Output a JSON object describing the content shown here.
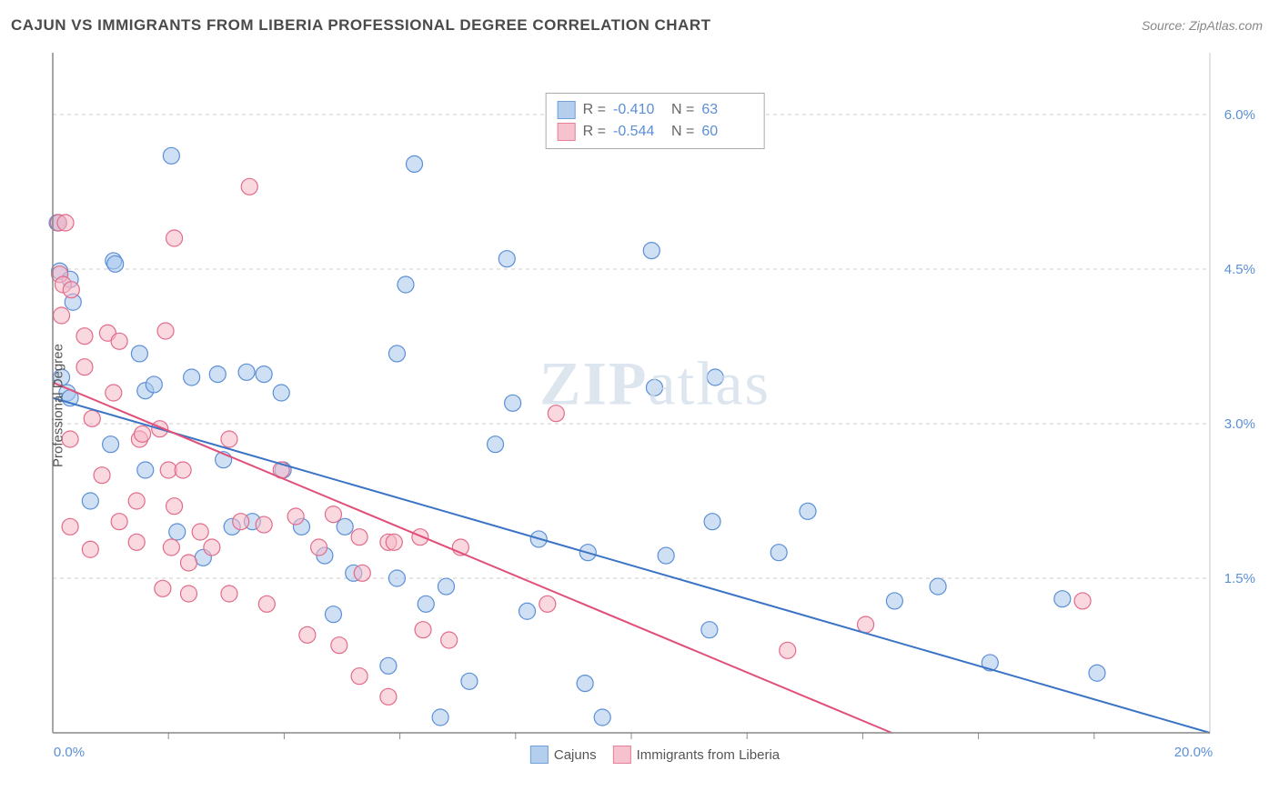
{
  "title": "CAJUN VS IMMIGRANTS FROM LIBERIA PROFESSIONAL DEGREE CORRELATION CHART",
  "source": "Source: ZipAtlas.com",
  "y_axis_label": "Professional Degree",
  "watermark_bold": "ZIP",
  "watermark_rest": "atlas",
  "chart": {
    "type": "scatter",
    "xlim": [
      0,
      20
    ],
    "ylim": [
      0,
      6.6
    ],
    "x_ticks_minor": [
      2,
      4,
      6,
      8,
      10,
      12,
      14,
      16,
      18
    ],
    "x_ticks_labeled": [
      0,
      20
    ],
    "x_tick_labels": [
      "0.0%",
      "20.0%"
    ],
    "y_ticks": [
      1.5,
      3.0,
      4.5,
      6.0
    ],
    "y_tick_labels": [
      "1.5%",
      "3.0%",
      "4.5%",
      "6.0%"
    ],
    "background_color": "#ffffff",
    "grid_color": "#cccccc",
    "axis_color": "#888888",
    "series": [
      {
        "name": "Cajuns",
        "fill": "#a8c6ec",
        "stroke": "#5b8fd6",
        "fill_opacity": 0.55,
        "marker_radius": 9,
        "r_value": "-0.410",
        "n_value": "63",
        "trend": {
          "x1": 0,
          "y1": 3.25,
          "x2": 20,
          "y2": 0.0,
          "color": "#3b74c4"
        },
        "points": [
          [
            0.08,
            4.95
          ],
          [
            0.1,
            4.95
          ],
          [
            0.12,
            4.48
          ],
          [
            0.3,
            4.4
          ],
          [
            0.35,
            4.18
          ],
          [
            1.05,
            4.58
          ],
          [
            1.08,
            4.55
          ],
          [
            2.05,
            5.6
          ],
          [
            1.5,
            3.68
          ],
          [
            1.6,
            3.32
          ],
          [
            0.15,
            3.45
          ],
          [
            2.4,
            3.45
          ],
          [
            1.6,
            2.55
          ],
          [
            2.85,
            3.48
          ],
          [
            3.35,
            3.5
          ],
          [
            3.65,
            3.48
          ],
          [
            3.95,
            3.3
          ],
          [
            3.1,
            2.0
          ],
          [
            3.45,
            2.05
          ],
          [
            4.3,
            2.0
          ],
          [
            4.7,
            1.72
          ],
          [
            5.05,
            2.0
          ],
          [
            5.2,
            1.55
          ],
          [
            5.95,
            3.68
          ],
          [
            6.1,
            4.35
          ],
          [
            6.25,
            5.52
          ],
          [
            5.95,
            1.5
          ],
          [
            5.8,
            0.65
          ],
          [
            6.7,
            0.15
          ],
          [
            6.8,
            1.42
          ],
          [
            7.65,
            2.8
          ],
          [
            7.85,
            4.6
          ],
          [
            7.95,
            3.2
          ],
          [
            8.2,
            1.18
          ],
          [
            8.4,
            1.88
          ],
          [
            9.2,
            0.48
          ],
          [
            9.25,
            1.75
          ],
          [
            9.5,
            0.15
          ],
          [
            10.35,
            4.68
          ],
          [
            10.4,
            3.35
          ],
          [
            10.6,
            1.72
          ],
          [
            11.35,
            1.0
          ],
          [
            11.4,
            2.05
          ],
          [
            11.45,
            3.45
          ],
          [
            12.55,
            1.75
          ],
          [
            13.05,
            2.15
          ],
          [
            14.55,
            1.28
          ],
          [
            15.3,
            1.42
          ],
          [
            16.2,
            0.68
          ],
          [
            17.45,
            1.3
          ],
          [
            18.05,
            0.58
          ],
          [
            3.98,
            2.55
          ],
          [
            2.6,
            1.7
          ],
          [
            2.15,
            1.95
          ],
          [
            1.0,
            2.8
          ],
          [
            0.25,
            3.3
          ],
          [
            0.3,
            3.25
          ],
          [
            0.65,
            2.25
          ],
          [
            4.85,
            1.15
          ],
          [
            6.45,
            1.25
          ],
          [
            7.2,
            0.5
          ],
          [
            2.95,
            2.65
          ],
          [
            1.75,
            3.38
          ]
        ]
      },
      {
        "name": "Immigrants from Liberia",
        "fill": "#f5b8c6",
        "stroke": "#e26b8a",
        "fill_opacity": 0.55,
        "marker_radius": 9,
        "r_value": "-0.544",
        "n_value": "60",
        "trend": {
          "x1": 0,
          "y1": 3.4,
          "x2": 14.5,
          "y2": 0.0,
          "color": "#e05078"
        },
        "points": [
          [
            0.1,
            4.95
          ],
          [
            0.22,
            4.95
          ],
          [
            0.12,
            4.45
          ],
          [
            0.18,
            4.35
          ],
          [
            0.32,
            4.3
          ],
          [
            0.55,
            3.85
          ],
          [
            0.95,
            3.88
          ],
          [
            1.15,
            3.8
          ],
          [
            1.05,
            3.3
          ],
          [
            0.55,
            3.55
          ],
          [
            0.68,
            3.05
          ],
          [
            0.3,
            2.85
          ],
          [
            0.85,
            2.5
          ],
          [
            1.5,
            2.85
          ],
          [
            1.55,
            2.9
          ],
          [
            1.85,
            2.95
          ],
          [
            2.0,
            2.55
          ],
          [
            2.25,
            2.55
          ],
          [
            2.1,
            2.2
          ],
          [
            1.45,
            2.25
          ],
          [
            0.3,
            2.0
          ],
          [
            0.65,
            1.78
          ],
          [
            1.45,
            1.85
          ],
          [
            2.05,
            1.8
          ],
          [
            2.75,
            1.8
          ],
          [
            2.55,
            1.95
          ],
          [
            3.25,
            2.05
          ],
          [
            3.65,
            2.02
          ],
          [
            3.95,
            2.55
          ],
          [
            4.2,
            2.1
          ],
          [
            4.85,
            2.12
          ],
          [
            4.6,
            1.8
          ],
          [
            5.3,
            1.9
          ],
          [
            5.35,
            1.55
          ],
          [
            5.8,
            1.85
          ],
          [
            5.9,
            1.85
          ],
          [
            6.35,
            1.9
          ],
          [
            7.05,
            1.8
          ],
          [
            3.05,
            1.35
          ],
          [
            3.7,
            1.25
          ],
          [
            4.4,
            0.95
          ],
          [
            4.95,
            0.85
          ],
          [
            5.3,
            0.55
          ],
          [
            5.8,
            0.35
          ],
          [
            6.4,
            1.0
          ],
          [
            6.85,
            0.9
          ],
          [
            8.55,
            1.25
          ],
          [
            8.7,
            3.1
          ],
          [
            12.7,
            0.8
          ],
          [
            14.05,
            1.05
          ],
          [
            17.8,
            1.28
          ],
          [
            1.95,
            3.9
          ],
          [
            2.1,
            4.8
          ],
          [
            3.4,
            5.3
          ],
          [
            0.15,
            4.05
          ],
          [
            2.35,
            1.65
          ],
          [
            3.05,
            2.85
          ],
          [
            1.15,
            2.05
          ],
          [
            1.9,
            1.4
          ],
          [
            2.35,
            1.35
          ]
        ]
      }
    ]
  },
  "legend": {
    "series1_label": "Cajuns",
    "series2_label": "Immigrants from Liberia",
    "r_label": "R =",
    "n_label": "N ="
  }
}
